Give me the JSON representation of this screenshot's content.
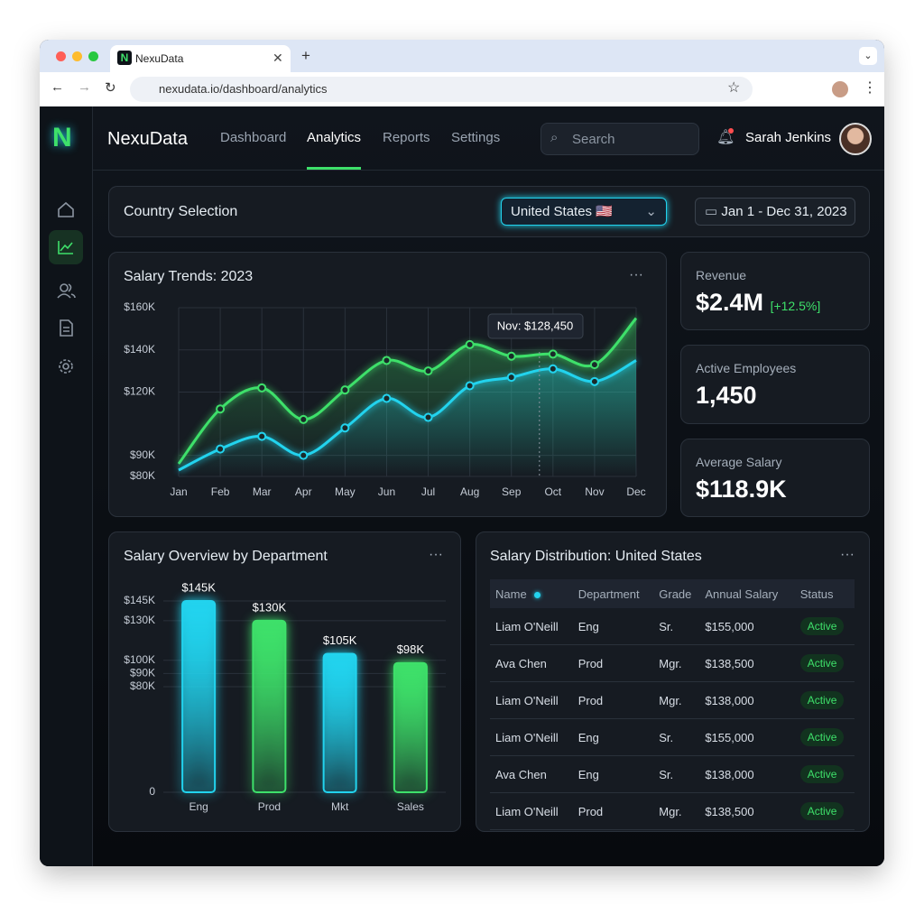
{
  "browser": {
    "tab_title": "NexuData",
    "url": "nexudata.io/dashboard/analytics"
  },
  "header": {
    "logo": "N",
    "brand": "NexuData",
    "nav": [
      "Dashboard",
      "Analytics",
      "Reports",
      "Settings"
    ],
    "search_placeholder": "Search",
    "user_name": "Sarah Jenkins"
  },
  "filters": {
    "title": "Country Selection",
    "country": "United States 🇺🇸",
    "date_range": "Jan 1 - Dec 31, 2023"
  },
  "kpis": [
    {
      "label": "Revenue",
      "value": "$2.4M",
      "change": "[+12.5%]"
    },
    {
      "label": "Active Employees",
      "value": "1,450"
    },
    {
      "label": "Average Salary",
      "value": "$118.9K"
    }
  ],
  "chart_data": [
    {
      "type": "line",
      "title": "Salary Trends: 2023",
      "categories": [
        "Jan",
        "Feb",
        "Mar",
        "Apr",
        "May",
        "Jun",
        "Jul",
        "Aug",
        "Sep",
        "Oct",
        "Nov",
        "Dec"
      ],
      "series": [
        {
          "color": "#3ee06a",
          "values": [
            86000,
            112000,
            122000,
            107000,
            121000,
            135000,
            130000,
            142500,
            137000,
            138000,
            133000,
            155000
          ]
        },
        {
          "color": "#22d3ee",
          "values": [
            83000,
            93000,
            99000,
            90000,
            103000,
            117000,
            108000,
            123000,
            127000,
            131000,
            125000,
            135000
          ]
        }
      ],
      "ylim": [
        80000,
        160000
      ],
      "yticks": [
        {
          "value": 80000,
          "label": "$80K"
        },
        {
          "value": 90000,
          "label": "$90K"
        },
        {
          "value": 120000,
          "label": "$120K"
        },
        {
          "value": 140000,
          "label": "$140K"
        },
        {
          "value": 160000,
          "label": "$160K"
        }
      ],
      "grid": true,
      "annotation": "Nov: $128,450"
    },
    {
      "type": "bar",
      "title": "Salary Overview by Department",
      "categories": [
        "Eng",
        "Prod",
        "Mkt",
        "Sales"
      ],
      "values": [
        145000,
        130000,
        105000,
        98000
      ],
      "value_labels": [
        "$145K",
        "$130K",
        "$105K",
        "$98K"
      ],
      "colors": [
        "#22d3ee",
        "#3ee06a",
        "#22d3ee",
        "#3ee06a"
      ],
      "ylim": [
        0,
        145000
      ],
      "yticks": [
        0,
        {
          "value": 80000,
          "label": "$80K"
        },
        {
          "value": 90000,
          "label": "$90K"
        },
        {
          "value": 100000,
          "label": "$100K"
        },
        {
          "value": 130000,
          "label": "$130K"
        },
        {
          "value": 145000,
          "label": "$145K"
        }
      ],
      "grid": true
    }
  ],
  "table": {
    "title": "Salary Distribution: United States",
    "columns": [
      "Name",
      "Department",
      "Grade",
      "Annual Salary",
      "Status"
    ],
    "rows": [
      [
        "Liam O'Neill",
        "Eng",
        "Sr.",
        "$155,000",
        "Active"
      ],
      [
        "Ava Chen",
        "Prod",
        "Mgr.",
        "$138,500",
        "Active"
      ],
      [
        "Liam O'Neill",
        "Prod",
        "Mgr.",
        "$138,000",
        "Active"
      ],
      [
        "Liam O'Neill",
        "Eng",
        "Sr.",
        "$155,000",
        "Active"
      ],
      [
        "Ava Chen",
        "Eng",
        "Sr.",
        "$138,000",
        "Active"
      ],
      [
        "Liam O'Neill",
        "Prod",
        "Mgr.",
        "$138,500",
        "Active"
      ]
    ]
  }
}
